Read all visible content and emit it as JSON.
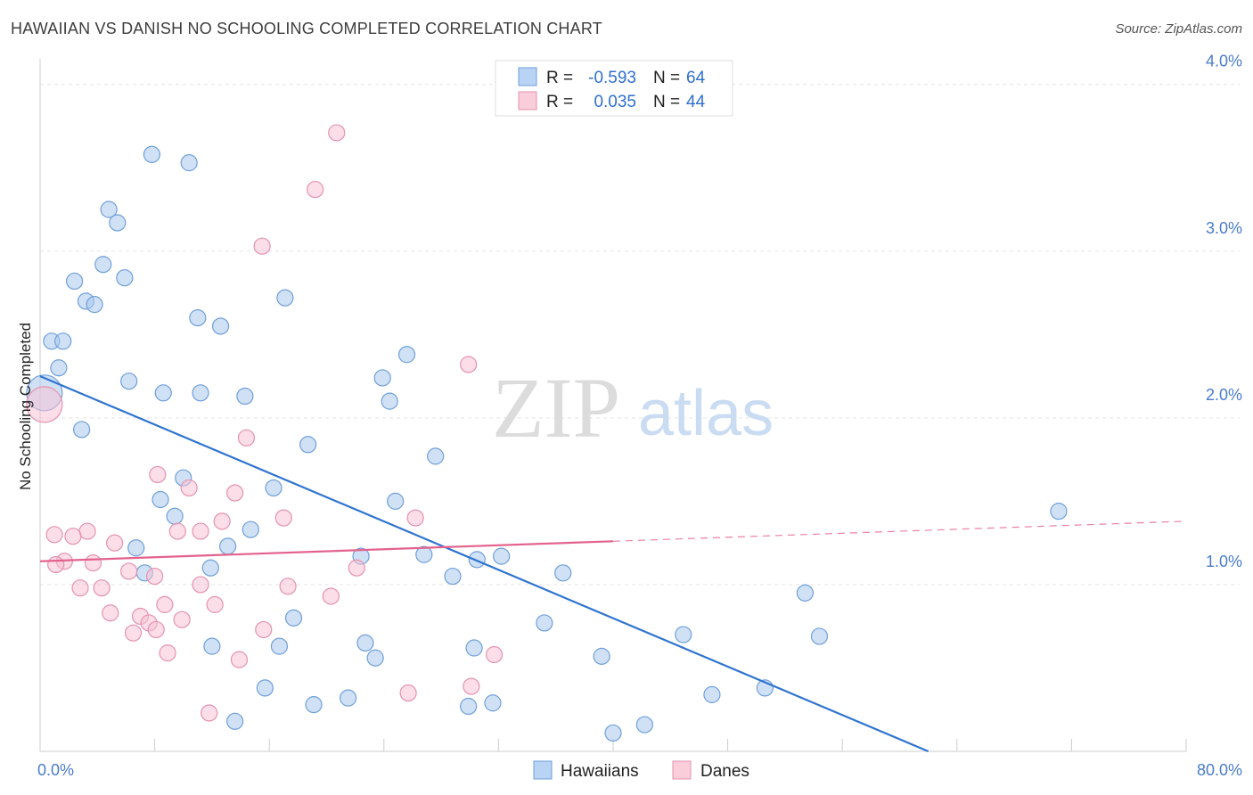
{
  "header": {
    "title": "HAWAIIAN VS DANISH NO SCHOOLING COMPLETED CORRELATION CHART",
    "source": "Source: ZipAtlas.com"
  },
  "watermark": {
    "part1": "ZIP",
    "part2": "atlas"
  },
  "chart_data": {
    "type": "scatter",
    "title": "HAWAIIAN VS DANISH NO SCHOOLING COMPLETED CORRELATION CHART",
    "xlabel": "",
    "ylabel": "No Schooling Completed",
    "xlim": [
      0,
      80
    ],
    "ylim": [
      0,
      4.1
    ],
    "x_tick_labels": [
      "0.0%",
      "80.0%"
    ],
    "y_ticks": [
      1,
      2,
      3,
      4
    ],
    "y_tick_labels": [
      "1.0%",
      "2.0%",
      "3.0%",
      "4.0%"
    ],
    "grid": true,
    "legend_position": "top-center",
    "stats_legend": [
      {
        "r_label": "R =",
        "r_value": "-0.593",
        "n_label": "N =",
        "n_value": "64"
      },
      {
        "r_label": "R =",
        "r_value": "0.035",
        "n_label": "N =",
        "n_value": "44"
      }
    ],
    "series": [
      {
        "name": "Hawaiians",
        "color": "#a9c8ef",
        "stroke": "#6f9fd8",
        "trend_color": "#2f74d0",
        "trend": {
          "x0": 0,
          "y0": 2.25,
          "x1": 62,
          "y1": 0.0,
          "dashed_to": null
        },
        "points": [
          [
            0.3,
            2.15
          ],
          [
            0.8,
            2.46
          ],
          [
            1.6,
            2.46
          ],
          [
            1.3,
            2.3
          ],
          [
            2.4,
            2.82
          ],
          [
            3.2,
            2.7
          ],
          [
            3.8,
            2.68
          ],
          [
            4.4,
            2.92
          ],
          [
            4.8,
            3.25
          ],
          [
            5.4,
            3.17
          ],
          [
            5.9,
            2.84
          ],
          [
            7.8,
            3.58
          ],
          [
            10.4,
            3.53
          ],
          [
            11.0,
            2.6
          ],
          [
            12.6,
            2.55
          ],
          [
            17.1,
            2.72
          ],
          [
            2.9,
            1.93
          ],
          [
            6.2,
            2.22
          ],
          [
            8.6,
            2.15
          ],
          [
            11.2,
            2.15
          ],
          [
            14.3,
            2.13
          ],
          [
            18.7,
            1.84
          ],
          [
            23.9,
            2.24
          ],
          [
            25.6,
            2.38
          ],
          [
            24.4,
            2.1
          ],
          [
            27.6,
            1.77
          ],
          [
            10.0,
            1.64
          ],
          [
            8.4,
            1.51
          ],
          [
            9.4,
            1.41
          ],
          [
            16.3,
            1.58
          ],
          [
            14.7,
            1.33
          ],
          [
            13.1,
            1.23
          ],
          [
            6.7,
            1.22
          ],
          [
            7.3,
            1.07
          ],
          [
            11.9,
            1.1
          ],
          [
            22.4,
            1.17
          ],
          [
            26.8,
            1.18
          ],
          [
            28.8,
            1.05
          ],
          [
            30.5,
            1.15
          ],
          [
            32.2,
            1.17
          ],
          [
            36.5,
            1.07
          ],
          [
            24.8,
            1.5
          ],
          [
            12.0,
            0.63
          ],
          [
            16.7,
            0.63
          ],
          [
            17.7,
            0.8
          ],
          [
            22.7,
            0.65
          ],
          [
            23.4,
            0.56
          ],
          [
            30.3,
            0.62
          ],
          [
            35.2,
            0.77
          ],
          [
            39.2,
            0.57
          ],
          [
            44.9,
            0.7
          ],
          [
            53.4,
            0.95
          ],
          [
            54.4,
            0.69
          ],
          [
            71.1,
            1.44
          ],
          [
            15.7,
            0.38
          ],
          [
            19.1,
            0.28
          ],
          [
            21.5,
            0.32
          ],
          [
            29.9,
            0.27
          ],
          [
            31.6,
            0.29
          ],
          [
            46.9,
            0.34
          ],
          [
            50.6,
            0.38
          ],
          [
            13.6,
            0.18
          ],
          [
            42.2,
            0.16
          ],
          [
            40.0,
            0.11
          ]
        ]
      },
      {
        "name": "Danes",
        "color": "#f7c3d3",
        "stroke": "#e592ae",
        "trend_color": "#e3628d",
        "trend": {
          "x0": 0,
          "y0": 1.14,
          "x1": 40,
          "y1": 1.26,
          "dashed_to": {
            "x": 80,
            "y": 1.38
          }
        },
        "points": [
          [
            0.3,
            2.08
          ],
          [
            20.7,
            3.71
          ],
          [
            19.2,
            3.37
          ],
          [
            15.5,
            3.03
          ],
          [
            29.9,
            2.32
          ],
          [
            14.4,
            1.88
          ],
          [
            10.4,
            1.58
          ],
          [
            13.6,
            1.55
          ],
          [
            8.2,
            1.66
          ],
          [
            17.0,
            1.4
          ],
          [
            26.2,
            1.4
          ],
          [
            12.7,
            1.38
          ],
          [
            9.6,
            1.32
          ],
          [
            11.2,
            1.32
          ],
          [
            1.0,
            1.3
          ],
          [
            3.3,
            1.32
          ],
          [
            2.3,
            1.29
          ],
          [
            5.2,
            1.25
          ],
          [
            1.7,
            1.14
          ],
          [
            3.7,
            1.13
          ],
          [
            1.1,
            1.12
          ],
          [
            6.2,
            1.08
          ],
          [
            22.1,
            1.1
          ],
          [
            2.8,
            0.98
          ],
          [
            4.3,
            0.98
          ],
          [
            8.0,
            1.05
          ],
          [
            11.2,
            1.0
          ],
          [
            17.3,
            0.99
          ],
          [
            20.3,
            0.93
          ],
          [
            4.9,
            0.83
          ],
          [
            6.5,
            0.71
          ],
          [
            7.0,
            0.81
          ],
          [
            7.6,
            0.77
          ],
          [
            8.1,
            0.73
          ],
          [
            8.7,
            0.88
          ],
          [
            9.9,
            0.79
          ],
          [
            12.2,
            0.88
          ],
          [
            15.6,
            0.73
          ],
          [
            8.9,
            0.59
          ],
          [
            13.9,
            0.55
          ],
          [
            31.7,
            0.58
          ],
          [
            25.7,
            0.35
          ],
          [
            30.1,
            0.39
          ],
          [
            11.8,
            0.23
          ]
        ]
      }
    ]
  },
  "bottom_legend": [
    {
      "label": "Hawaiians"
    },
    {
      "label": "Danes"
    }
  ]
}
